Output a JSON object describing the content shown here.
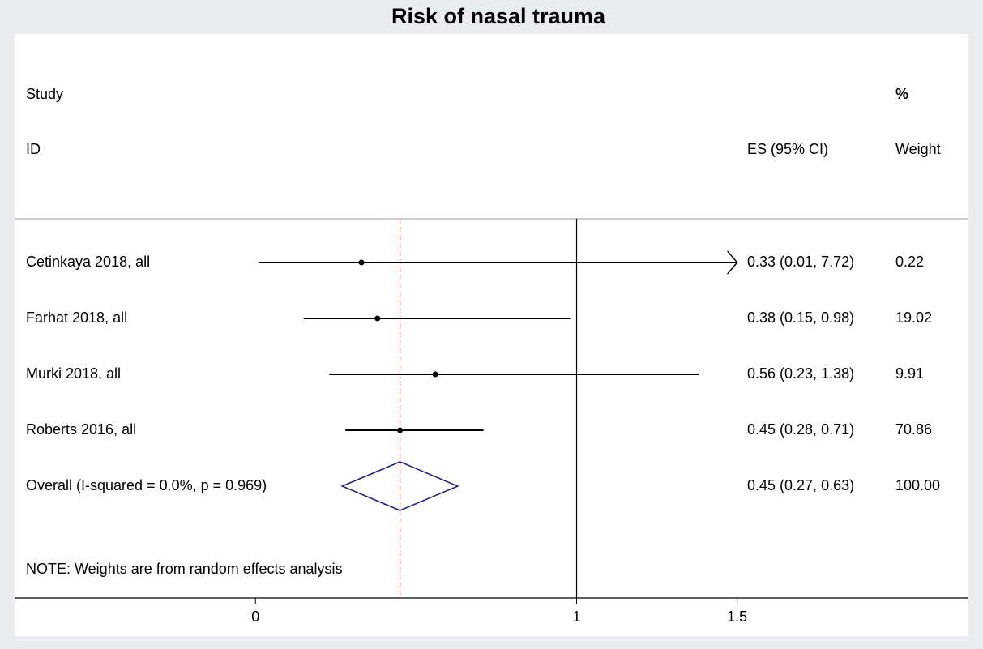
{
  "chart_data": {
    "type": "forest",
    "title": "Risk of nasal trauma",
    "headers": {
      "study": "Study",
      "id": "ID",
      "es": "ES (95% CI)",
      "pct": "%",
      "weight": "Weight"
    },
    "studies": [
      {
        "label": "Cetinkaya 2018, all",
        "es": 0.33,
        "lower": 0.01,
        "upper": 7.72,
        "ci_label": "0.33 (0.01, 7.72)",
        "weight": 0.22,
        "weight_label": "0.22"
      },
      {
        "label": "Farhat 2018, all",
        "es": 0.38,
        "lower": 0.15,
        "upper": 0.98,
        "ci_label": "0.38 (0.15, 0.98)",
        "weight": 19.02,
        "weight_label": "19.02"
      },
      {
        "label": "Murki 2018, all",
        "es": 0.56,
        "lower": 0.23,
        "upper": 1.38,
        "ci_label": "0.56 (0.23, 1.38)",
        "weight": 9.91,
        "weight_label": "9.91"
      },
      {
        "label": "Roberts 2016, all",
        "es": 0.45,
        "lower": 0.28,
        "upper": 0.71,
        "ci_label": "0.45 (0.28, 0.71)",
        "weight": 70.86,
        "weight_label": "70.86"
      }
    ],
    "overall": {
      "label": "Overall  (I-squared = 0.0%, p = 0.969)",
      "es": 0.45,
      "lower": 0.27,
      "upper": 0.63,
      "ci_label": "0.45 (0.27, 0.63)",
      "weight": 100,
      "weight_label": "100.00"
    },
    "note": "NOTE: Weights are from random effects analysis",
    "null_line": 1,
    "xlim": [
      -0.75,
      2.22
    ],
    "xticks": [
      0,
      1,
      1.5
    ],
    "line_color": "#000000",
    "diamond_color": "#1f1f7a",
    "ref_line_color": "#a0403a"
  }
}
